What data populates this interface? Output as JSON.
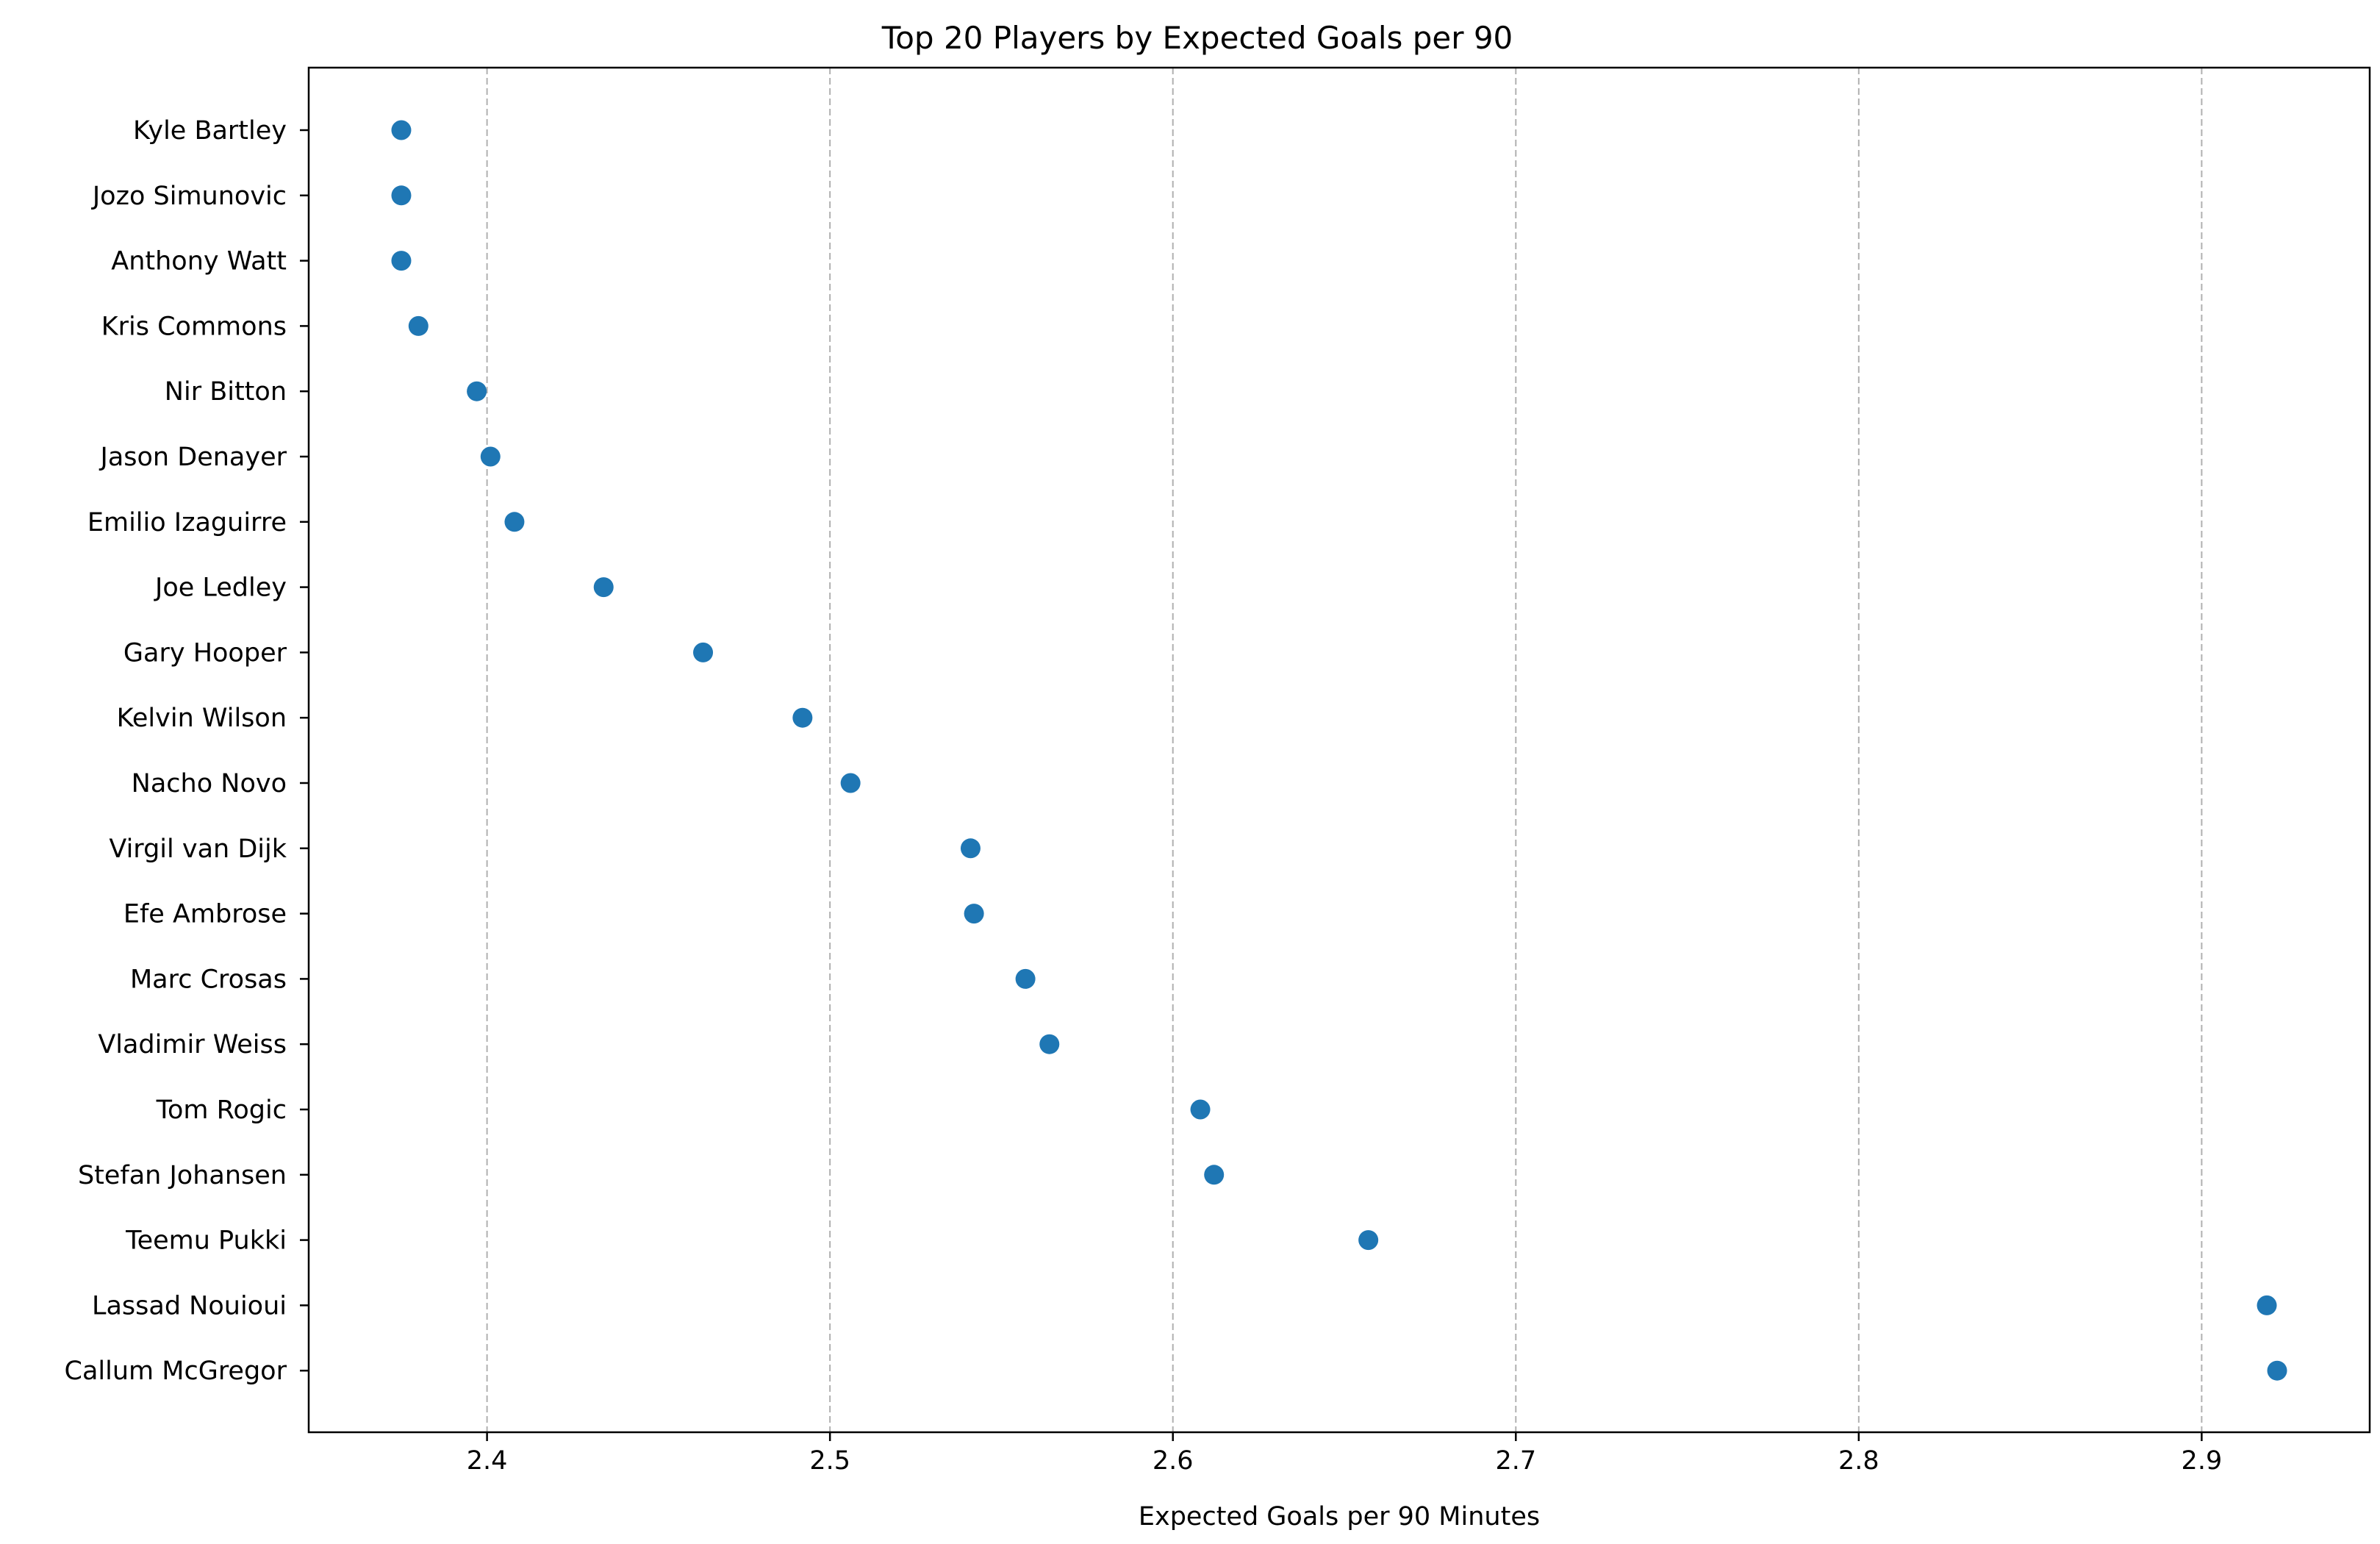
{
  "chart_data": {
    "type": "scatter",
    "title": "Top 20 Players by Expected Goals per 90",
    "xlabel": "Expected Goals per 90 Minutes",
    "ylabel": "",
    "xlim": [
      2.348,
      2.949
    ],
    "xticks": [
      "2.4",
      "2.5",
      "2.6",
      "2.7",
      "2.8",
      "2.9"
    ],
    "x_grid": true,
    "y_grid": false,
    "marker_color": "#1f77b4",
    "grid_color": "#b0b0b0",
    "points": [
      {
        "player": "Kyle Bartley",
        "value": 2.375
      },
      {
        "player": "Jozo Simunovic",
        "value": 2.375
      },
      {
        "player": "Anthony Watt",
        "value": 2.375
      },
      {
        "player": "Kris Commons",
        "value": 2.38
      },
      {
        "player": "Nir Bitton",
        "value": 2.397
      },
      {
        "player": "Jason Denayer",
        "value": 2.401
      },
      {
        "player": "Emilio Izaguirre",
        "value": 2.408
      },
      {
        "player": "Joe Ledley",
        "value": 2.434
      },
      {
        "player": "Gary Hooper",
        "value": 2.463
      },
      {
        "player": "Kelvin Wilson",
        "value": 2.492
      },
      {
        "player": "Nacho Novo",
        "value": 2.506
      },
      {
        "player": "Virgil van Dijk",
        "value": 2.541
      },
      {
        "player": "Efe Ambrose",
        "value": 2.542
      },
      {
        "player": "Marc Crosas",
        "value": 2.557
      },
      {
        "player": "Vladimir Weiss",
        "value": 2.564
      },
      {
        "player": "Tom Rogic",
        "value": 2.608
      },
      {
        "player": "Stefan Johansen",
        "value": 2.612
      },
      {
        "player": "Teemu Pukki",
        "value": 2.657
      },
      {
        "player": "Lassad Nouioui",
        "value": 2.919
      },
      {
        "player": "Callum McGregor",
        "value": 2.922
      }
    ]
  }
}
